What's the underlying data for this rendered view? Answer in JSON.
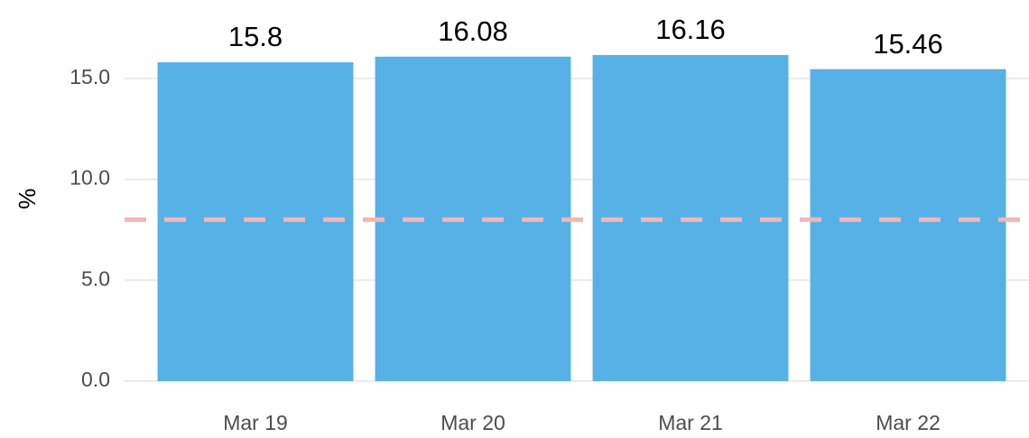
{
  "chart_data": {
    "type": "bar",
    "y_label": "%",
    "categories": [
      "Mar 19",
      "Mar 20",
      "Mar 21",
      "Mar 22"
    ],
    "values": [
      15.8,
      16.08,
      16.16,
      15.46
    ],
    "color": "#56b1e6",
    "ylim": [
      0,
      17.5
    ],
    "yticks": [
      {
        "value": 0,
        "label": "0.0"
      },
      {
        "value": 5,
        "label": "5.0"
      },
      {
        "value": 10,
        "label": "10.0"
      },
      {
        "value": 15,
        "label": "15.0"
      }
    ],
    "grid": true,
    "reference_line": {
      "value": 8,
      "color": "#f4b6b6"
    }
  }
}
